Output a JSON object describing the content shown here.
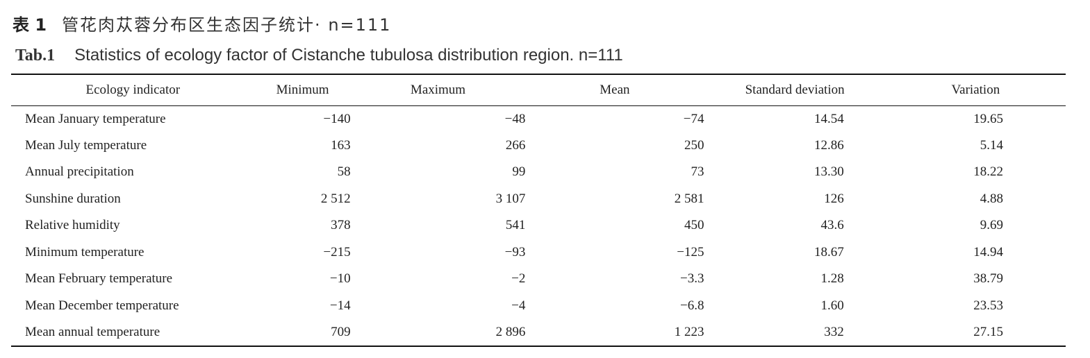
{
  "header": {
    "label_cn": "表 1",
    "title_cn": "管花肉苁蓉分布区生态因子统计· n=111",
    "label_en": "Tab.1",
    "title_en": "Statistics of ecology factor of Cistanche tubulosa distribution region. n=111"
  },
  "table": {
    "columns": [
      "Ecology indicator",
      "Minimum",
      "Maximum",
      "Mean",
      "Standard deviation",
      "Variation"
    ],
    "rows": [
      [
        "Mean January temperature",
        "−140",
        "−48",
        "−74",
        "14.54",
        "19.65"
      ],
      [
        "Mean July temperature",
        "163",
        "266",
        "250",
        "12.86",
        "5.14"
      ],
      [
        "Annual precipitation",
        "58",
        "99",
        "73",
        "13.30",
        "18.22"
      ],
      [
        "Sunshine duration",
        "2 512",
        "3 107",
        "2 581",
        "126",
        "4.88"
      ],
      [
        "Relative humidity",
        "378",
        "541",
        "450",
        "43.6",
        "9.69"
      ],
      [
        "Minimum temperature",
        "−215",
        "−93",
        "−125",
        "18.67",
        "14.94"
      ],
      [
        "Mean February temperature",
        "−10",
        "−2",
        "−3.3",
        "1.28",
        "38.79"
      ],
      [
        "Mean December temperature",
        "−14",
        "−4",
        "−6.8",
        "1.60",
        "23.53"
      ],
      [
        "Mean annual temperature",
        "709",
        "2 896",
        "1 223",
        "332",
        "27.15"
      ]
    ]
  }
}
